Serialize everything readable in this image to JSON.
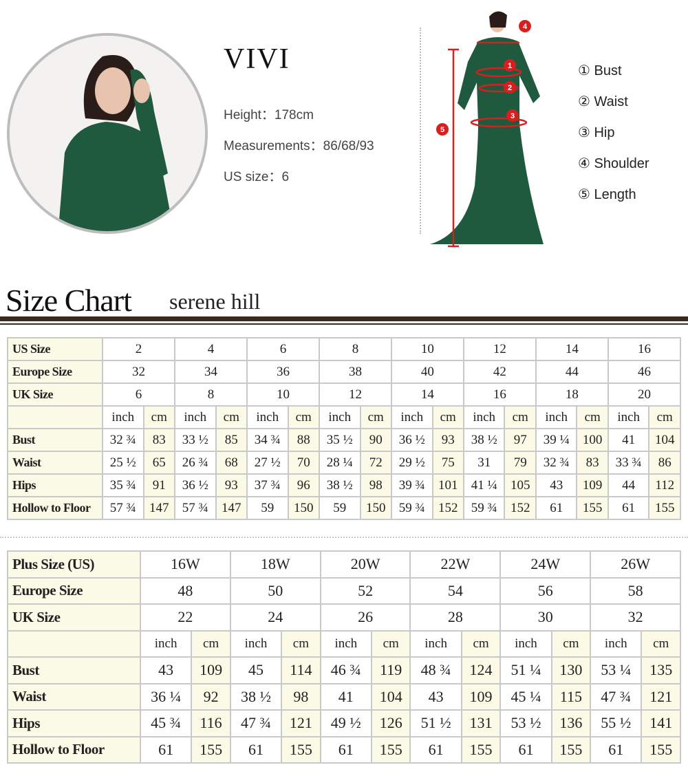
{
  "model": {
    "name": "VIVI",
    "height": "Height：178cm",
    "measurements": "Measurements：86/68/93",
    "us_size": "US size：6"
  },
  "legend": [
    "① Bust",
    "② Waist",
    "③ Hip",
    "④ Shoulder",
    "⑤ Length"
  ],
  "title": "Size Chart",
  "brand": "serene hill",
  "colors": {
    "dress": "#1f5a3e",
    "marker": "#d81e1e",
    "rule": "#3a2a22",
    "label_bg": "#fafae6"
  },
  "standard": {
    "labels": [
      "US Size",
      "Europe Size",
      "UK Size",
      "",
      "Bust",
      "Waist",
      "Hips",
      "Hollow to Floor"
    ],
    "us": [
      "2",
      "4",
      "6",
      "8",
      "10",
      "12",
      "14",
      "16"
    ],
    "eu": [
      "32",
      "34",
      "36",
      "38",
      "40",
      "42",
      "44",
      "46"
    ],
    "uk": [
      "6",
      "8",
      "10",
      "12",
      "14",
      "16",
      "18",
      "20"
    ],
    "units": [
      "inch",
      "cm"
    ],
    "rows": [
      [
        "32 ¾",
        "83",
        "33 ½",
        "85",
        "34 ¾",
        "88",
        "35 ½",
        "90",
        "36 ½",
        "93",
        "38 ½",
        "97",
        "39 ¼",
        "100",
        "41",
        "104"
      ],
      [
        "25 ½",
        "65",
        "26 ¾",
        "68",
        "27 ½",
        "70",
        "28 ¼",
        "72",
        "29 ½",
        "75",
        "31",
        "79",
        "32 ¾",
        "83",
        "33 ¾",
        "86"
      ],
      [
        "35 ¾",
        "91",
        "36 ½",
        "93",
        "37 ¾",
        "96",
        "38 ½",
        "98",
        "39 ¾",
        "101",
        "41 ¼",
        "105",
        "43",
        "109",
        "44",
        "112"
      ],
      [
        "57 ¾",
        "147",
        "57 ¾",
        "147",
        "59",
        "150",
        "59",
        "150",
        "59 ¾",
        "152",
        "59 ¾",
        "152",
        "61",
        "155",
        "61",
        "155"
      ]
    ]
  },
  "plus": {
    "labels": [
      "Plus Size (US)",
      "Europe Size",
      "UK Size",
      "",
      "Bust",
      "Waist",
      "Hips",
      "Hollow to Floor"
    ],
    "us": [
      "16W",
      "18W",
      "20W",
      "22W",
      "24W",
      "26W"
    ],
    "eu": [
      "48",
      "50",
      "52",
      "54",
      "56",
      "58"
    ],
    "uk": [
      "22",
      "24",
      "26",
      "28",
      "30",
      "32"
    ],
    "units": [
      "inch",
      "cm"
    ],
    "rows": [
      [
        "43",
        "109",
        "45",
        "114",
        "46 ¾",
        "119",
        "48 ¾",
        "124",
        "51 ¼",
        "130",
        "53 ¼",
        "135"
      ],
      [
        "36 ¼",
        "92",
        "38 ½",
        "98",
        "41",
        "104",
        "43",
        "109",
        "45 ¼",
        "115",
        "47 ¾",
        "121"
      ],
      [
        "45 ¾",
        "116",
        "47 ¾",
        "121",
        "49 ½",
        "126",
        "51 ½",
        "131",
        "53 ½",
        "136",
        "55 ½",
        "141"
      ],
      [
        "61",
        "155",
        "61",
        "155",
        "61",
        "155",
        "61",
        "155",
        "61",
        "155",
        "61",
        "155"
      ]
    ]
  }
}
